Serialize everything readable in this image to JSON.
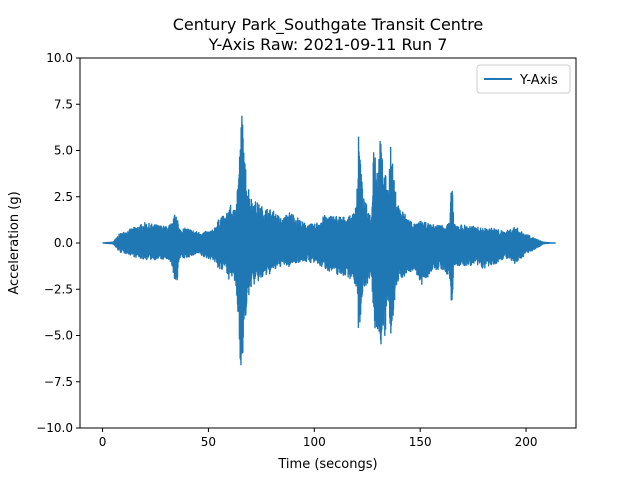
{
  "chart_data": {
    "type": "line",
    "title_line1": "Century Park_Southgate Transit Centre",
    "title_line2": "Y-Axis Raw: 2021-09-11 Run 7",
    "xlabel": "Time (secongs)",
    "ylabel": "Acceleration (g)",
    "xlim": [
      -10.65,
      223.6
    ],
    "ylim": [
      -10,
      10
    ],
    "xticks": [
      0,
      50,
      100,
      150,
      200
    ],
    "xtick_labels": [
      "0",
      "50",
      "100",
      "150",
      "200"
    ],
    "yticks": [
      -10,
      -7.5,
      -5,
      -2.5,
      0,
      2.5,
      5,
      7.5,
      10
    ],
    "ytick_labels": [
      "−10.0",
      "−7.5",
      "−5.0",
      "−2.5",
      "0.0",
      "2.5",
      "5.0",
      "7.5",
      "10.0"
    ],
    "grid": false,
    "legend_position": "top-right",
    "series": [
      {
        "name": "Y-Axis",
        "color": "#1f77b4",
        "envelope_time": [
          0,
          5,
          8,
          12,
          16,
          20,
          25,
          30,
          33,
          35,
          36,
          40,
          45,
          48,
          52,
          56,
          58,
          60,
          62,
          64,
          65,
          66,
          67,
          70,
          75,
          80,
          85,
          88,
          90,
          95,
          100,
          105,
          110,
          115,
          118,
          120,
          121,
          123,
          125,
          127,
          128,
          130,
          131,
          133,
          135,
          136,
          138,
          140,
          145,
          148,
          150,
          155,
          160,
          164,
          165,
          166,
          170,
          175,
          180,
          185,
          190,
          195,
          198,
          200,
          205,
          208,
          212,
          214
        ],
        "envelope_max": [
          0.0,
          0.05,
          0.5,
          0.7,
          0.9,
          1.1,
          1.0,
          0.9,
          1.1,
          1.9,
          0.8,
          0.8,
          0.6,
          0.6,
          0.7,
          1.5,
          1.4,
          2.1,
          1.8,
          3.5,
          5.5,
          7.6,
          4.5,
          2.5,
          2.0,
          1.8,
          1.3,
          1.7,
          1.6,
          1.1,
          1.0,
          1.5,
          1.5,
          1.4,
          1.5,
          2.5,
          6.1,
          2.5,
          2.0,
          1.4,
          5.9,
          4.0,
          5.8,
          4.0,
          3.0,
          5.5,
          3.0,
          2.0,
          1.3,
          1.0,
          1.2,
          1.0,
          1.0,
          1.1,
          3.8,
          1.0,
          1.0,
          0.9,
          0.8,
          0.8,
          0.6,
          0.9,
          0.6,
          0.5,
          0.2,
          0.05,
          0.0,
          0.0
        ],
        "envelope_min": [
          0.0,
          -0.05,
          -0.5,
          -0.6,
          -0.8,
          -0.9,
          -0.9,
          -0.9,
          -1.3,
          -2.8,
          -0.9,
          -0.8,
          -0.6,
          -0.8,
          -0.9,
          -1.6,
          -1.3,
          -2.1,
          -1.8,
          -4.0,
          -6.3,
          -7.4,
          -4.5,
          -2.4,
          -2.0,
          -1.6,
          -1.2,
          -1.3,
          -1.1,
          -1.0,
          -1.1,
          -1.4,
          -1.7,
          -1.8,
          -2.0,
          -2.5,
          -5.1,
          -2.5,
          -2.2,
          -2.0,
          -4.6,
          -5.0,
          -5.5,
          -5.7,
          -3.2,
          -5.5,
          -3.0,
          -2.0,
          -1.6,
          -1.5,
          -2.5,
          -1.6,
          -1.4,
          -2.0,
          -3.8,
          -1.2,
          -1.3,
          -1.2,
          -1.4,
          -1.2,
          -0.8,
          -1.2,
          -0.8,
          -0.6,
          -0.3,
          -0.05,
          0.0,
          0.0
        ]
      }
    ]
  }
}
